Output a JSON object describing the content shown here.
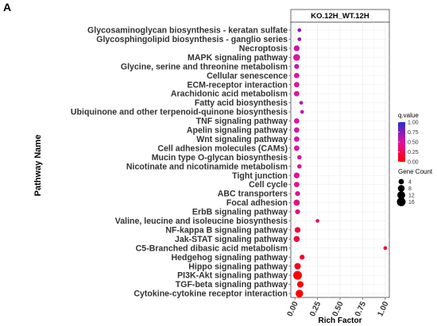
{
  "panel_letter": "A",
  "chart_data": {
    "type": "scatter",
    "facet_title": "KO.12H_WT.12H",
    "xlabel": "Rich Factor",
    "ylabel": "Pathway Name",
    "xlim": [
      0.0,
      1.0
    ],
    "x_ticks": [
      "0.00",
      "0.25",
      "0.50",
      "0.75",
      "1.00"
    ],
    "grid": true,
    "legend_position": "right",
    "color_legend": {
      "title": "q.value",
      "ticks": [
        "1.00",
        "0.75",
        "0.50",
        "0.25",
        "0.00"
      ],
      "low_color": "#ff0000",
      "high_color": "#2a2bd3"
    },
    "size_legend": {
      "title": "Gene Count",
      "values": [
        "4",
        "8",
        "12",
        "16"
      ]
    },
    "pathways": [
      {
        "name": "Glycosaminoglycan biosynthesis - keratan sulfate",
        "rich_factor": 0.05,
        "q_value": 0.72,
        "gene_count": 1
      },
      {
        "name": "Glycosphingolipid biosynthesis - ganglio series",
        "rich_factor": 0.05,
        "q_value": 0.72,
        "gene_count": 1
      },
      {
        "name": "Necroptosis",
        "rich_factor": 0.02,
        "q_value": 0.55,
        "gene_count": 5
      },
      {
        "name": "MAPK signaling pathway",
        "rich_factor": 0.02,
        "q_value": 0.5,
        "gene_count": 8
      },
      {
        "name": "Glycine, serine and threonine metabolism",
        "rich_factor": 0.02,
        "q_value": 0.55,
        "gene_count": 3
      },
      {
        "name": "Cellular senescence",
        "rich_factor": 0.02,
        "q_value": 0.5,
        "gene_count": 4
      },
      {
        "name": "ECM-receptor interaction",
        "rich_factor": 0.02,
        "q_value": 0.5,
        "gene_count": 4
      },
      {
        "name": "Arachidonic acid metabolism",
        "rich_factor": 0.02,
        "q_value": 0.5,
        "gene_count": 4
      },
      {
        "name": "Fatty acid biosynthesis",
        "rich_factor": 0.07,
        "q_value": 0.6,
        "gene_count": 1
      },
      {
        "name": "Ubiquinone and other terpenoid-quinone biosynthesis",
        "rich_factor": 0.08,
        "q_value": 0.6,
        "gene_count": 1
      },
      {
        "name": "TNF signaling pathway",
        "rich_factor": 0.02,
        "q_value": 0.5,
        "gene_count": 4
      },
      {
        "name": "Apelin signaling pathway",
        "rich_factor": 0.02,
        "q_value": 0.5,
        "gene_count": 4
      },
      {
        "name": "Wnt signaling pathway",
        "rich_factor": 0.02,
        "q_value": 0.5,
        "gene_count": 4
      },
      {
        "name": "Cell adhesion molecules (CAMs)",
        "rich_factor": 0.02,
        "q_value": 0.5,
        "gene_count": 4
      },
      {
        "name": "Mucin type O-glycan biosynthesis",
        "rich_factor": 0.05,
        "q_value": 0.5,
        "gene_count": 2
      },
      {
        "name": "Nicotinate and nicotinamide metabolism",
        "rich_factor": 0.05,
        "q_value": 0.5,
        "gene_count": 2
      },
      {
        "name": "Tight junction",
        "rich_factor": 0.02,
        "q_value": 0.45,
        "gene_count": 5
      },
      {
        "name": "Cell cycle",
        "rich_factor": 0.02,
        "q_value": 0.45,
        "gene_count": 4
      },
      {
        "name": "ABC transporters",
        "rich_factor": 0.03,
        "q_value": 0.45,
        "gene_count": 3
      },
      {
        "name": "Focal adhesion",
        "rich_factor": 0.02,
        "q_value": 0.4,
        "gene_count": 6
      },
      {
        "name": "ErbB signaling pathway",
        "rich_factor": 0.03,
        "q_value": 0.4,
        "gene_count": 3
      },
      {
        "name": "Valine, leucine and isoleucine biosynthesis",
        "rich_factor": 0.25,
        "q_value": 0.3,
        "gene_count": 1
      },
      {
        "name": "NF-kappa B signaling pathway",
        "rich_factor": 0.03,
        "q_value": 0.2,
        "gene_count": 5
      },
      {
        "name": "Jak-STAT signaling pathway",
        "rich_factor": 0.02,
        "q_value": 0.2,
        "gene_count": 6
      },
      {
        "name": "C5-Branched dibasic acid metabolism",
        "rich_factor": 1.0,
        "q_value": 0.15,
        "gene_count": 1
      },
      {
        "name": "Hedgehog signaling pathway",
        "rich_factor": 0.08,
        "q_value": 0.12,
        "gene_count": 3
      },
      {
        "name": "Hippo signaling pathway",
        "rich_factor": 0.03,
        "q_value": 0.08,
        "gene_count": 7
      },
      {
        "name": "PI3K-Akt signaling pathway",
        "rich_factor": 0.03,
        "q_value": 0.02,
        "gene_count": 16
      },
      {
        "name": "TGF-beta signaling pathway",
        "rich_factor": 0.06,
        "q_value": 0.02,
        "gene_count": 7
      },
      {
        "name": "Cytokine-cytokine receptor interaction",
        "rich_factor": 0.05,
        "q_value": 0.01,
        "gene_count": 11
      }
    ]
  }
}
